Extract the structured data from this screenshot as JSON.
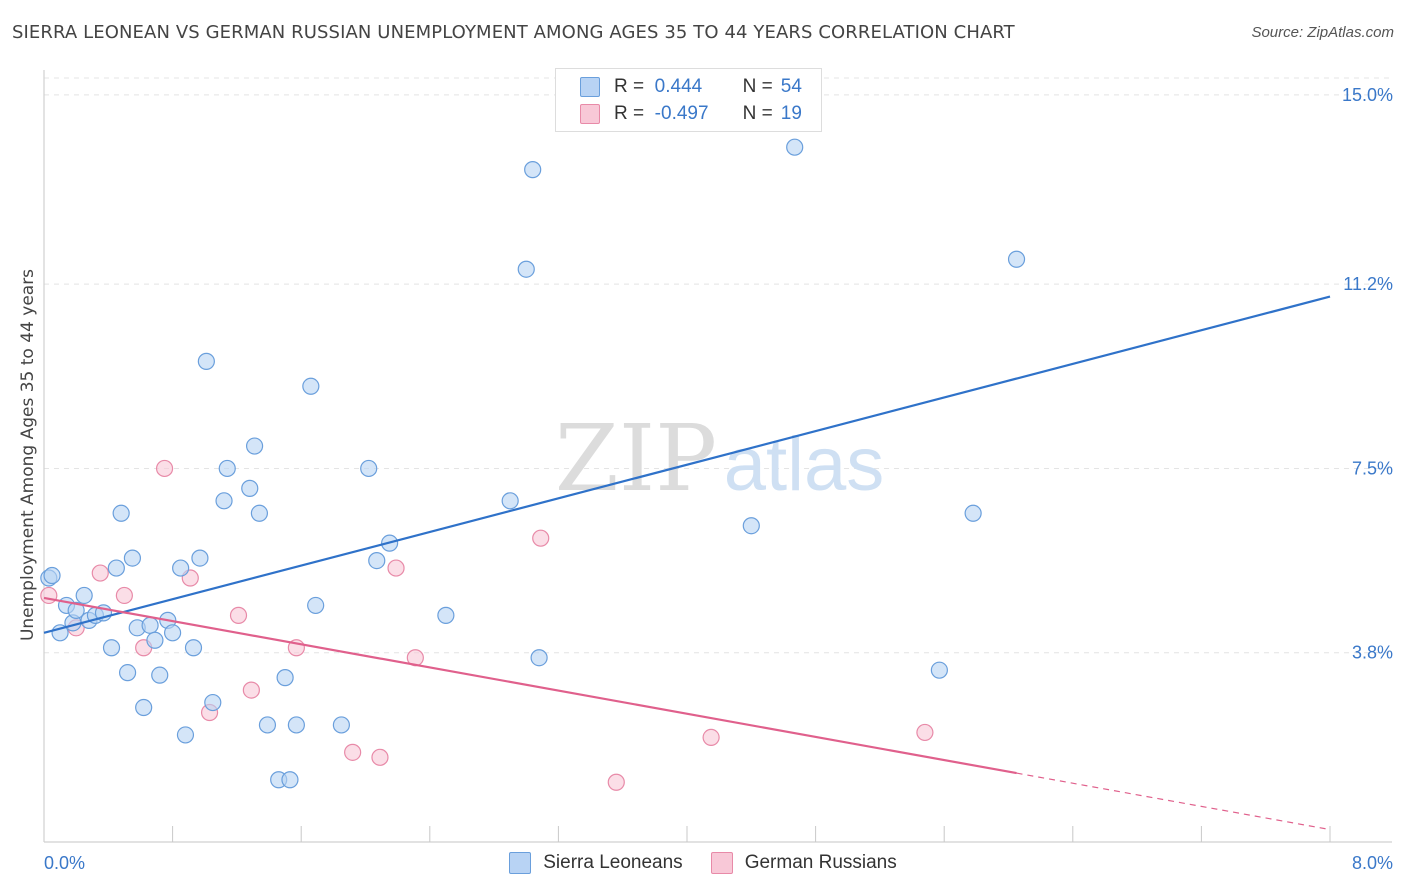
{
  "header": {
    "title": "SIERRA LEONEAN VS GERMAN RUSSIAN UNEMPLOYMENT AMONG AGES 35 TO 44 YEARS CORRELATION CHART",
    "source": "Source: ZipAtlas.com"
  },
  "watermark": {
    "zip": "ZIP",
    "atlas": "atlas"
  },
  "legend": {
    "rows": [
      {
        "r_label": "R =",
        "r_value": "0.444",
        "n_label": "N =",
        "n_value": "54"
      },
      {
        "r_label": "R =",
        "r_value": "-0.497",
        "n_label": "N =",
        "n_value": "19"
      }
    ],
    "series_names": [
      "Sierra Leoneans",
      "German Russians"
    ]
  },
  "colors": {
    "blue_fill": "#b8d3f4",
    "blue_stroke": "#6a9fdc",
    "blue_line": "#2f72c9",
    "pink_fill": "#f8c8d7",
    "pink_stroke": "#e88aa8",
    "pink_line": "#e0608c",
    "tick_label": "#3a78c9"
  },
  "chart_data": {
    "type": "scatter",
    "title": "SIERRA LEONEAN VS GERMAN RUSSIAN UNEMPLOYMENT AMONG AGES 35 TO 44 YEARS CORRELATION CHART",
    "xlabel": "",
    "ylabel": "Unemployment Among Ages 35 to 44 years",
    "xlim": [
      0,
      8
    ],
    "ylim": [
      0,
      15.5
    ],
    "x_tick_labels": [
      "0.0%",
      "8.0%"
    ],
    "y_ticks": [
      3.8,
      7.5,
      11.2,
      15.0
    ],
    "y_tick_labels": [
      "3.8%",
      "7.5%",
      "11.2%",
      "15.0%"
    ],
    "grid": true,
    "legend_position": "top-center",
    "series": [
      {
        "name": "Sierra Leoneans",
        "color": "#b8d3f4",
        "r": 0.444,
        "n": 54,
        "trend": {
          "x": [
            0.0,
            8.0
          ],
          "y": [
            4.2,
            10.95
          ],
          "dashed_from_x": null
        },
        "points": [
          [
            0.03,
            5.3
          ],
          [
            0.05,
            5.35
          ],
          [
            0.1,
            4.2
          ],
          [
            0.14,
            4.75
          ],
          [
            0.18,
            4.4
          ],
          [
            0.2,
            4.65
          ],
          [
            0.25,
            4.95
          ],
          [
            0.28,
            4.45
          ],
          [
            0.32,
            4.55
          ],
          [
            0.37,
            4.6
          ],
          [
            0.42,
            3.9
          ],
          [
            0.45,
            5.5
          ],
          [
            0.48,
            6.6
          ],
          [
            0.52,
            3.4
          ],
          [
            0.55,
            5.7
          ],
          [
            0.58,
            4.3
          ],
          [
            0.62,
            2.7
          ],
          [
            0.66,
            4.35
          ],
          [
            0.69,
            4.05
          ],
          [
            0.72,
            3.35
          ],
          [
            0.77,
            4.45
          ],
          [
            0.8,
            4.2
          ],
          [
            0.85,
            5.5
          ],
          [
            0.88,
            2.15
          ],
          [
            0.93,
            3.9
          ],
          [
            0.97,
            5.7
          ],
          [
            1.01,
            9.65
          ],
          [
            1.05,
            2.8
          ],
          [
            1.12,
            6.85
          ],
          [
            1.14,
            7.5
          ],
          [
            1.28,
            7.1
          ],
          [
            1.31,
            7.95
          ],
          [
            1.34,
            6.6
          ],
          [
            1.39,
            2.35
          ],
          [
            1.46,
            1.25
          ],
          [
            1.5,
            3.3
          ],
          [
            1.53,
            1.25
          ],
          [
            1.57,
            2.35
          ],
          [
            1.66,
            9.15
          ],
          [
            1.69,
            4.75
          ],
          [
            1.85,
            2.35
          ],
          [
            2.02,
            7.5
          ],
          [
            2.07,
            5.65
          ],
          [
            2.15,
            6.0
          ],
          [
            2.5,
            4.55
          ],
          [
            2.9,
            6.85
          ],
          [
            3.0,
            11.5
          ],
          [
            3.04,
            13.5
          ],
          [
            3.08,
            3.7
          ],
          [
            4.4,
            6.35
          ],
          [
            4.67,
            13.95
          ],
          [
            5.57,
            3.45
          ],
          [
            5.78,
            6.6
          ],
          [
            6.05,
            11.7
          ]
        ]
      },
      {
        "name": "German Russians",
        "color": "#f8c8d7",
        "r": -0.497,
        "n": 19,
        "trend": {
          "x": [
            0.0,
            8.0
          ],
          "y": [
            4.9,
            0.25
          ],
          "dashed_from_x": 6.05
        },
        "points": [
          [
            0.03,
            4.95
          ],
          [
            0.2,
            4.3
          ],
          [
            0.35,
            5.4
          ],
          [
            0.5,
            4.95
          ],
          [
            0.62,
            3.9
          ],
          [
            0.75,
            7.5
          ],
          [
            0.91,
            5.3
          ],
          [
            1.03,
            2.6
          ],
          [
            1.21,
            4.55
          ],
          [
            1.29,
            3.05
          ],
          [
            1.57,
            3.9
          ],
          [
            1.92,
            1.8
          ],
          [
            2.09,
            1.7
          ],
          [
            2.19,
            5.5
          ],
          [
            2.31,
            3.7
          ],
          [
            3.09,
            6.1
          ],
          [
            3.56,
            1.2
          ],
          [
            4.15,
            2.1
          ],
          [
            5.48,
            2.2
          ]
        ]
      }
    ]
  }
}
